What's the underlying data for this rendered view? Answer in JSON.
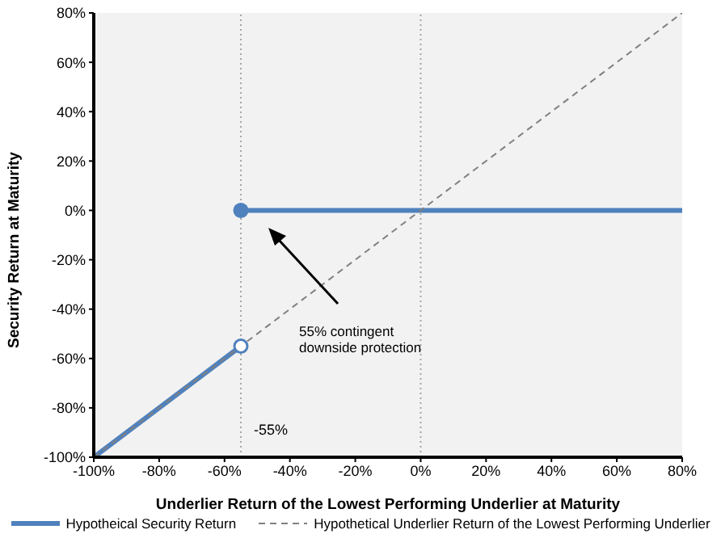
{
  "chart_data": {
    "type": "line",
    "xlabel": "Underlier Return of the Lowest Performing Underlier at Maturity",
    "ylabel": "Security Return at Maturity",
    "xlim": [
      -100,
      80
    ],
    "ylim": [
      -100,
      80
    ],
    "xticks": [
      {
        "value": -100,
        "label": "-100%"
      },
      {
        "value": -80,
        "label": "-80%"
      },
      {
        "value": -60,
        "label": "-60%"
      },
      {
        "value": -40,
        "label": "-40%"
      },
      {
        "value": -20,
        "label": "-20%"
      },
      {
        "value": 0,
        "label": "0%"
      },
      {
        "value": 20,
        "label": "20%"
      },
      {
        "value": 40,
        "label": "40%"
      },
      {
        "value": 60,
        "label": "60%"
      },
      {
        "value": 80,
        "label": "80%"
      }
    ],
    "yticks": [
      {
        "value": -100,
        "label": "-100%"
      },
      {
        "value": -80,
        "label": "-80%"
      },
      {
        "value": -60,
        "label": "-60%"
      },
      {
        "value": -40,
        "label": "-40%"
      },
      {
        "value": -20,
        "label": "-20%"
      },
      {
        "value": 0,
        "label": "0%"
      },
      {
        "value": 20,
        "label": "20%"
      },
      {
        "value": 40,
        "label": "40%"
      },
      {
        "value": 60,
        "label": "60%"
      },
      {
        "value": 80,
        "label": "80%"
      }
    ],
    "series": [
      {
        "name": "Hypotheical Security Return",
        "color": "#4f81bd",
        "x": [
          -100,
          -55,
          null,
          -55,
          80
        ],
        "values": [
          -100,
          -55,
          null,
          0,
          0
        ],
        "marker": "circle",
        "line_style": "solid"
      },
      {
        "name": "Hypothetical Underlier Return of the Lowest Performing Underlier",
        "color": "#808080",
        "x": [
          -100,
          80
        ],
        "values": [
          -100,
          80
        ],
        "marker": "none",
        "line_style": "dashed"
      }
    ],
    "ref_lines": [
      {
        "axis": "x",
        "value": -55,
        "color": "#a6a6a6",
        "line_style": "dotted"
      },
      {
        "axis": "x",
        "value": 0,
        "color": "#a6a6a6",
        "line_style": "dotted"
      }
    ],
    "annotations": [
      {
        "text": "-55%",
        "x": -55,
        "y": -100
      },
      "55% contingent downside protection"
    ],
    "grid": false,
    "legend": "bottom"
  }
}
